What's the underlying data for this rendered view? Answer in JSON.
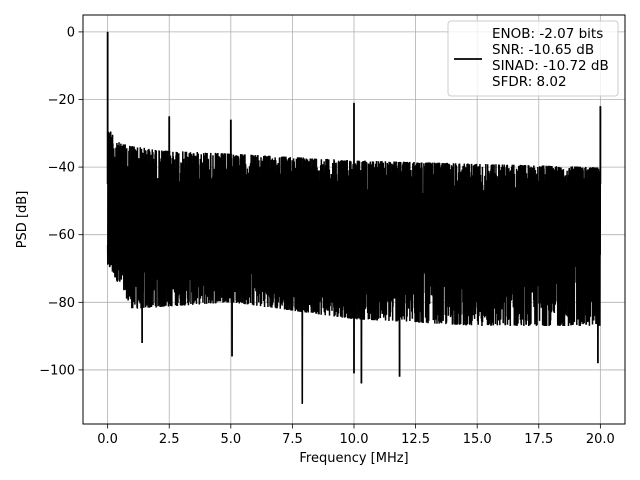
{
  "chart_data": {
    "type": "line",
    "title": "",
    "xlabel": "Frequency [MHz]",
    "ylabel": "PSD [dB]",
    "xlim": [
      -1.0,
      21.0
    ],
    "ylim": [
      -116,
      5
    ],
    "xticks": [
      0.0,
      2.5,
      5.0,
      7.5,
      10.0,
      12.5,
      15.0,
      17.5,
      20.0
    ],
    "xtick_labels": [
      "0.0",
      "2.5",
      "5.0",
      "7.5",
      "10.0",
      "12.5",
      "15.0",
      "17.5",
      "20.0"
    ],
    "yticks": [
      0,
      -20,
      -40,
      -60,
      -80,
      -100
    ],
    "ytick_labels": [
      "0",
      "−20",
      "−40",
      "−60",
      "−80",
      "−100"
    ],
    "grid": true,
    "legend_position": "top-right",
    "series": [
      {
        "name": "ENOB: -2.07 bits\nSNR: -10.65 dB\nSINAD: -10.72 dB\nSFDR: 8.02",
        "color": "#000000",
        "noise_band": {
          "x_range": [
            0.0,
            20.0
          ],
          "upper_envelope": [
            [
              0.1,
              -29
            ],
            [
              0.5,
              -33
            ],
            [
              2.0,
              -35
            ],
            [
              5.0,
              -36
            ],
            [
              10.0,
              -38
            ],
            [
              15.0,
              -39
            ],
            [
              20.0,
              -40
            ]
          ],
          "lower_envelope": [
            [
              0.1,
              -70
            ],
            [
              1.0,
              -82
            ],
            [
              5.0,
              -80
            ],
            [
              10.0,
              -85
            ],
            [
              15.0,
              -87
            ],
            [
              20.0,
              -87
            ]
          ],
          "center": -55
        },
        "peaks": [
          {
            "x": 0.0,
            "y": 0
          },
          {
            "x": 2.5,
            "y": -25
          },
          {
            "x": 5.0,
            "y": -26
          },
          {
            "x": 10.0,
            "y": -21
          },
          {
            "x": 20.0,
            "y": -22
          }
        ],
        "dips": [
          {
            "x": 1.4,
            "y": -92
          },
          {
            "x": 5.05,
            "y": -96
          },
          {
            "x": 7.9,
            "y": -110
          },
          {
            "x": 10.0,
            "y": -101
          },
          {
            "x": 10.3,
            "y": -104
          },
          {
            "x": 11.85,
            "y": -102
          },
          {
            "x": 19.9,
            "y": -98
          }
        ]
      }
    ]
  }
}
